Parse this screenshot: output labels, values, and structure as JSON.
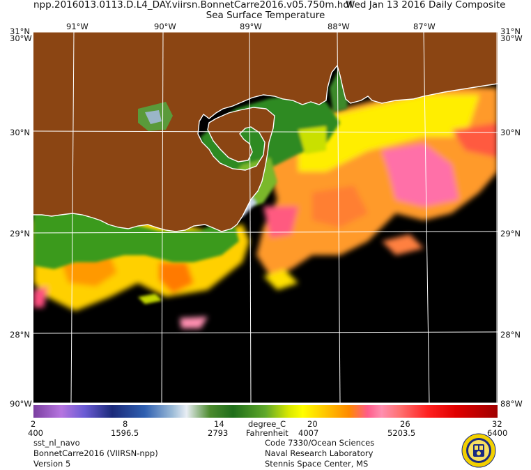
{
  "header": {
    "filename": "npp.2016013.0113.D.L4_DAY.viirsn.BonnetCarre2016.v05.750m.hdf",
    "date": "Wed Jan 13 2016 Daily Composite",
    "product": "Sea Surface Temperature"
  },
  "map": {
    "lon_labels": [
      "91°W",
      "90°W",
      "89°W",
      "88°W",
      "87°W"
    ],
    "lat_labels_left": [
      "31°N",
      "30°N",
      "29°N",
      "28°N"
    ],
    "lat_labels_right": [
      "31°N",
      "30°N",
      "29°N",
      "28°N"
    ],
    "corner_labels": {
      "top_left": "30°W",
      "top_right": "30°W",
      "bottom_left": "90°W",
      "bottom_right": "88°W"
    },
    "colors": {
      "land": "#8b4513",
      "nodata": "#000000",
      "coast": "#ffffff",
      "grid": "#ffffff"
    }
  },
  "colorbar": {
    "celsius_ticks": [
      "2",
      "8",
      "14",
      "20",
      "26",
      "32"
    ],
    "fahrenheit_ticks": [
      "400",
      "1596.5",
      "2793",
      "4007",
      "5203.5",
      "6400"
    ],
    "unit_c": "degree_C",
    "unit_f": "Fahrenheit"
  },
  "footer": {
    "left": [
      "sst_nl_navo",
      "BonnetCarre2016 (VIIRSN-npp)",
      "Version 5"
    ],
    "right": [
      "Code 7330/Ocean Sciences",
      "Naval Research Laboratory",
      "Stennis Space Center, MS"
    ]
  }
}
